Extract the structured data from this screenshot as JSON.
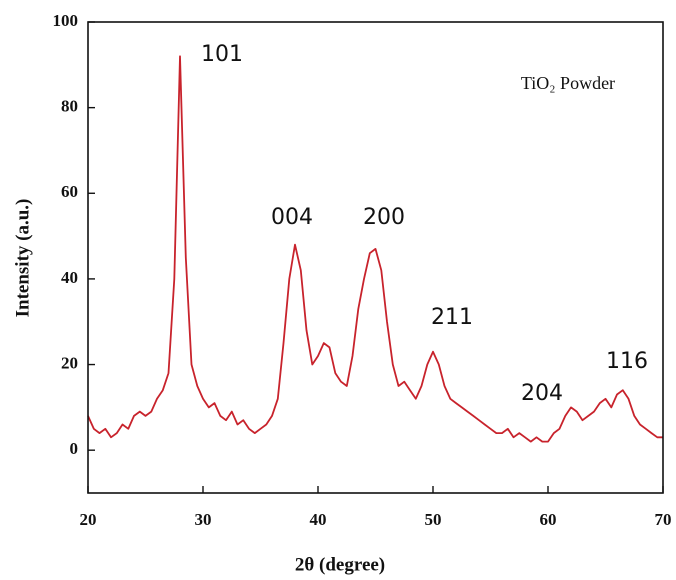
{
  "chart_data": {
    "type": "line",
    "x_label": "2θ (degree)",
    "y_label": "Intensity (a.u.)",
    "xlim": [
      20,
      70
    ],
    "xticks": [
      20,
      30,
      40,
      50,
      60,
      70
    ],
    "ylim": [
      -10,
      100
    ],
    "yticks": [
      0,
      20,
      40,
      60,
      80,
      100
    ],
    "grid": false,
    "annotations": [
      "101",
      "004",
      "200",
      "211",
      "204",
      "116"
    ],
    "x": [
      20,
      20.5,
      21,
      21.5,
      22,
      22.5,
      23,
      23.5,
      24,
      24.5,
      25,
      25.5,
      26,
      26.5,
      27,
      27.5,
      28,
      28.5,
      29,
      29.5,
      30,
      30.5,
      31,
      31.5,
      32,
      32.5,
      33,
      33.5,
      34,
      34.5,
      35,
      35.5,
      36,
      36.5,
      37,
      37.5,
      38,
      38.5,
      39,
      39.5,
      40,
      40.5,
      41,
      41.5,
      42,
      42.5,
      43,
      43.5,
      44,
      44.5,
      45,
      45.5,
      46,
      46.5,
      47,
      47.5,
      48,
      48.5,
      49,
      49.5,
      50,
      50.5,
      51,
      51.5,
      52,
      52.5,
      53,
      53.5,
      54,
      54.5,
      55,
      55.5,
      56,
      56.5,
      57,
      57.5,
      58,
      58.5,
      59,
      59.5,
      60,
      60.5,
      61,
      61.5,
      62,
      62.5,
      63,
      63.5,
      64,
      64.5,
      65,
      65.5,
      66,
      66.5,
      67,
      67.5,
      68,
      68.5,
      69,
      69.5,
      70
    ],
    "series": [
      {
        "name": "TiO₂ Powder",
        "color": "#c8232c",
        "values": [
          8,
          5,
          4,
          5,
          3,
          4,
          6,
          5,
          8,
          9,
          8,
          9,
          12,
          14,
          18,
          40,
          92,
          45,
          20,
          15,
          12,
          10,
          11,
          8,
          7,
          9,
          6,
          7,
          5,
          4,
          5,
          6,
          8,
          12,
          25,
          40,
          48,
          42,
          28,
          20,
          22,
          25,
          24,
          18,
          16,
          15,
          22,
          33,
          40,
          46,
          47,
          42,
          30,
          20,
          15,
          16,
          14,
          12,
          15,
          20,
          23,
          20,
          15,
          12,
          11,
          10,
          9,
          8,
          7,
          6,
          5,
          4,
          4,
          5,
          3,
          4,
          3,
          2,
          3,
          2,
          2,
          4,
          5,
          8,
          10,
          9,
          7,
          8,
          9,
          11,
          12,
          10,
          13,
          14,
          12,
          8,
          6,
          5,
          4,
          3,
          3
        ]
      }
    ]
  }
}
